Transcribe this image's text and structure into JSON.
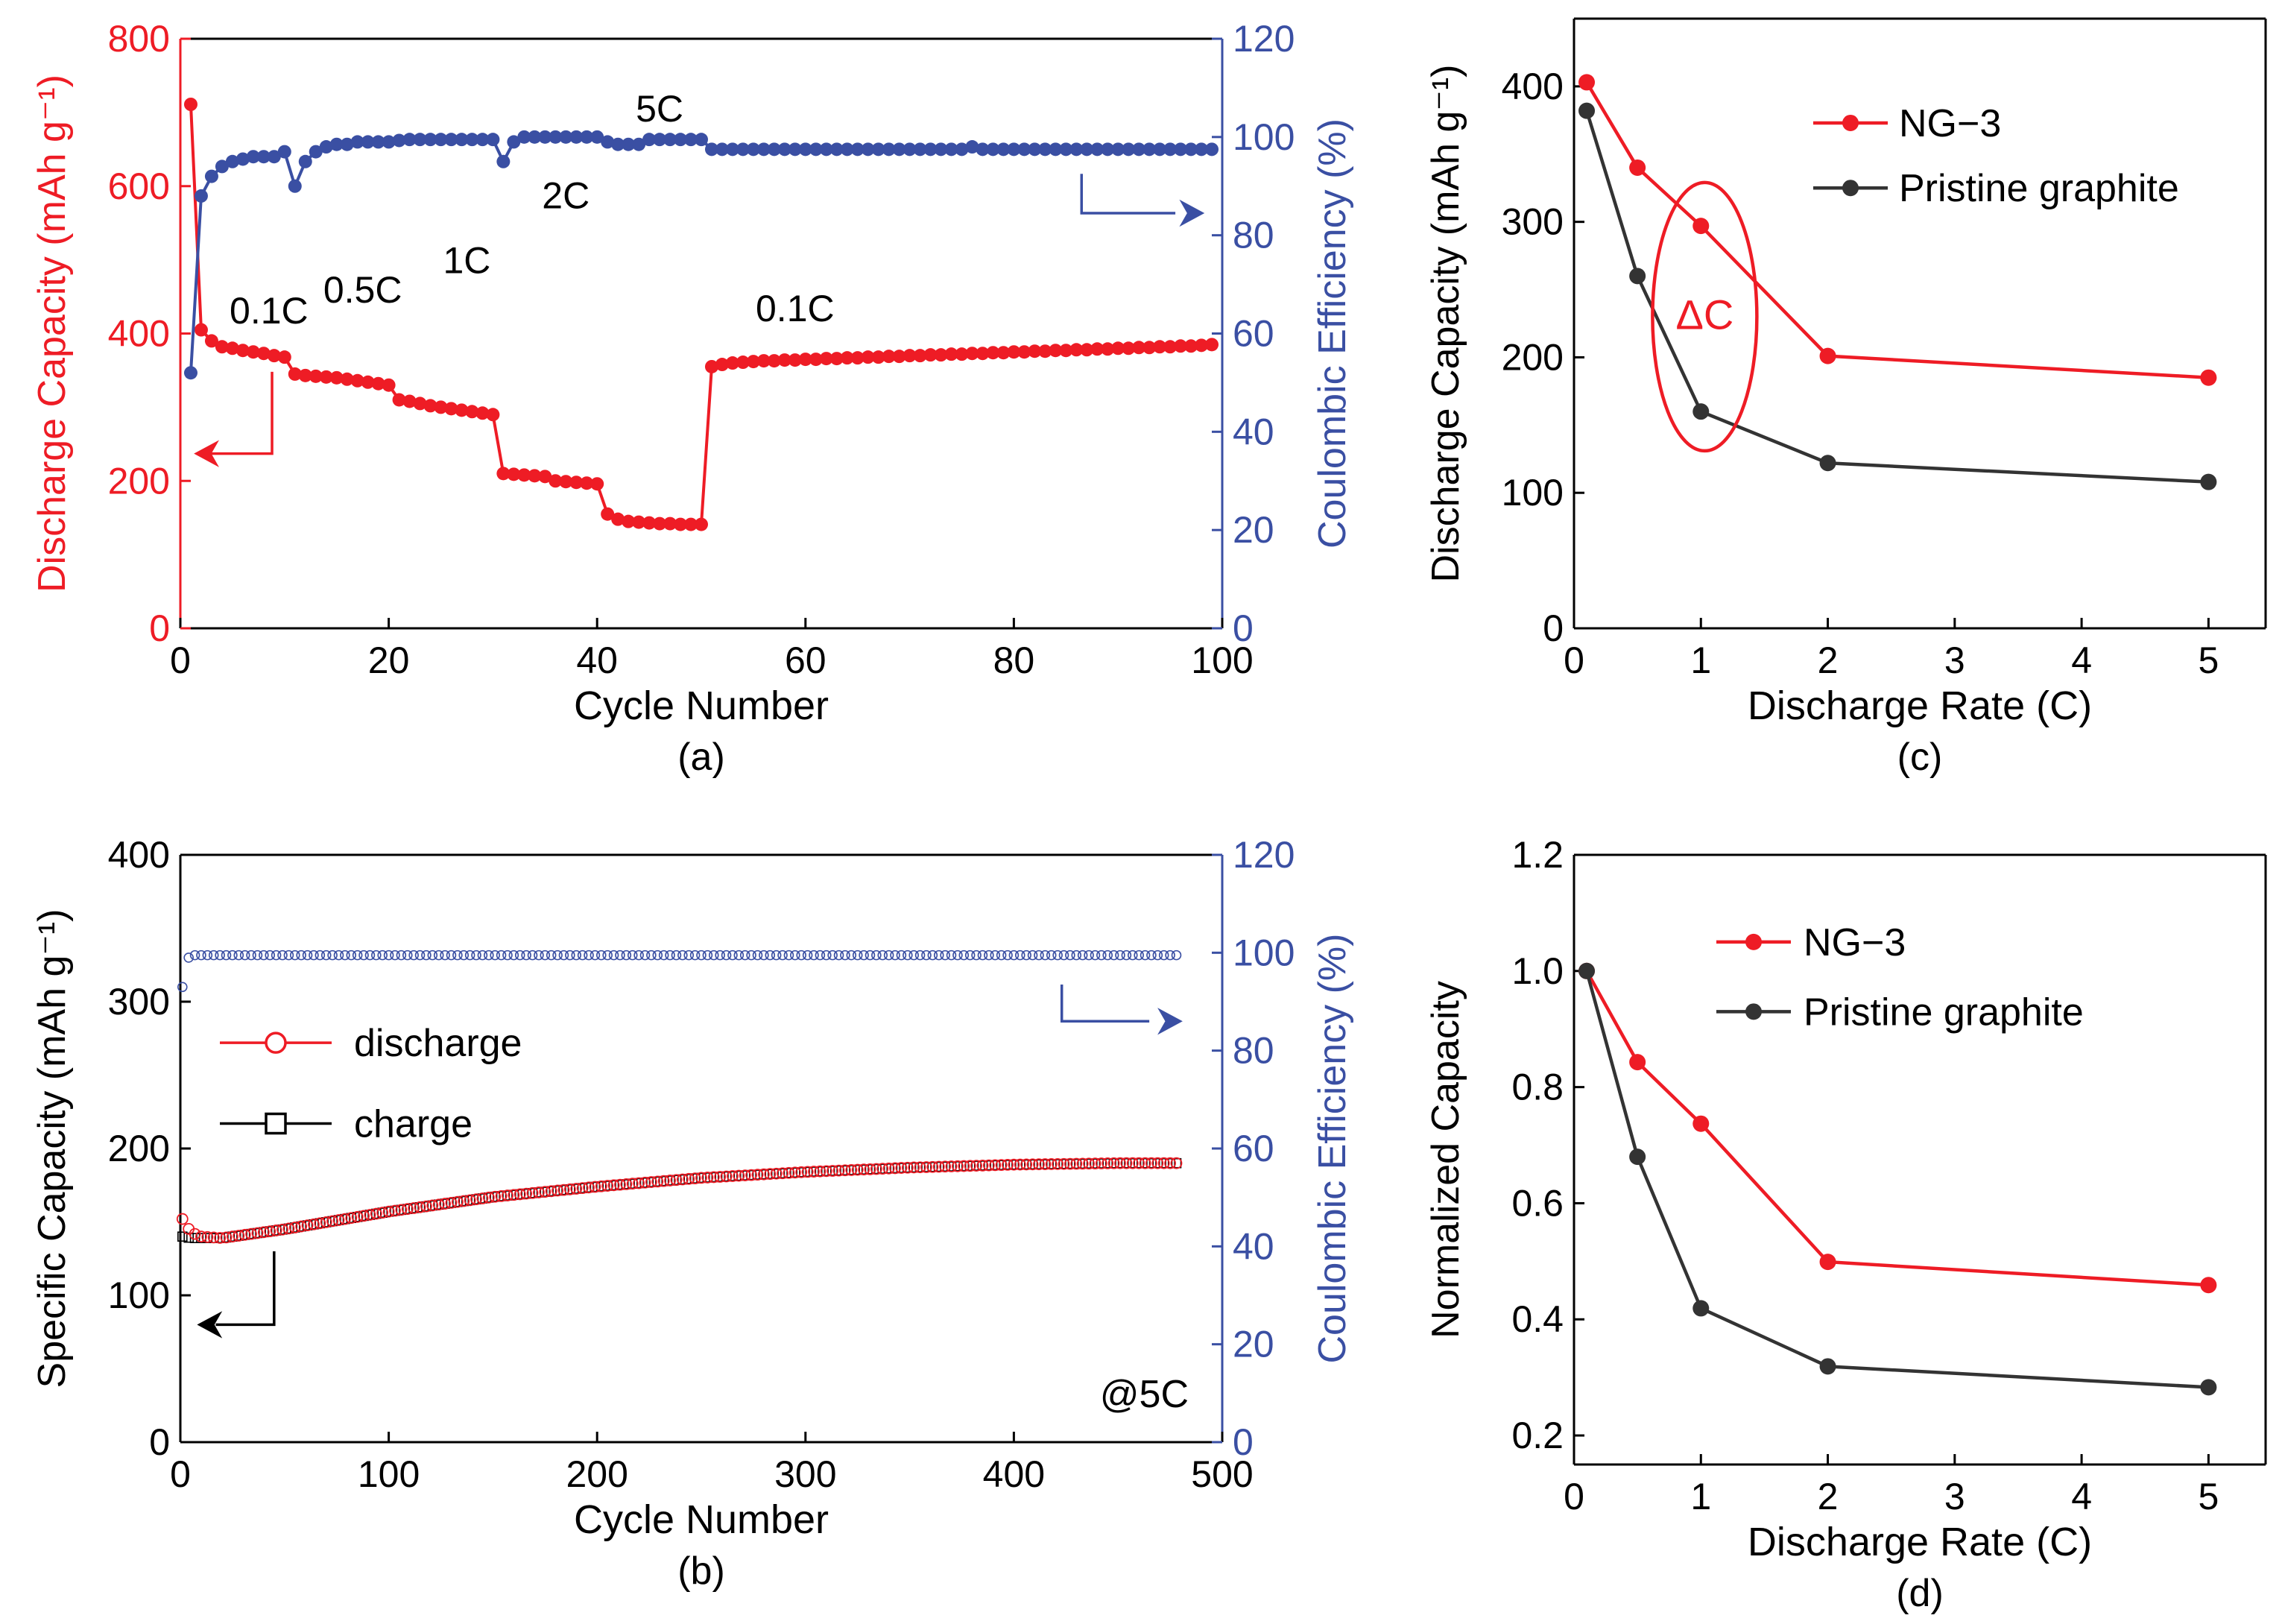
{
  "colors": {
    "red": "#ee1c25",
    "blue": "#3a4fa3",
    "black": "#000000",
    "dark": "#333333"
  },
  "chart_data": [
    {
      "id": "a",
      "type": "scatter-line",
      "caption": "(a)",
      "xlabel": "Cycle Number",
      "xlim": [
        0,
        100
      ],
      "xticks": [
        0,
        20,
        40,
        60,
        80,
        100
      ],
      "ylabel": "Discharge Capacity (mAh g⁻¹)",
      "ylim": [
        0,
        800
      ],
      "yticks": [
        0,
        200,
        400,
        600,
        800
      ],
      "y2label": "Coulombic Efficiency (%)",
      "y2lim": [
        0,
        120
      ],
      "y2ticks": [
        0,
        20,
        40,
        60,
        80,
        100,
        120
      ],
      "series": [
        {
          "name": "Discharge Capacity",
          "axis": "left",
          "color": "red",
          "x": [
            1,
            2,
            3,
            4,
            5,
            6,
            7,
            8,
            9,
            10,
            11,
            12,
            13,
            14,
            15,
            16,
            17,
            18,
            19,
            20,
            21,
            22,
            23,
            24,
            25,
            26,
            27,
            28,
            29,
            30,
            31,
            32,
            33,
            34,
            35,
            36,
            37,
            38,
            39,
            40,
            41,
            42,
            43,
            44,
            45,
            46,
            47,
            48,
            49,
            50,
            51,
            52,
            53,
            54,
            55,
            56,
            57,
            58,
            59,
            60,
            61,
            62,
            63,
            64,
            65,
            66,
            67,
            68,
            69,
            70,
            71,
            72,
            73,
            74,
            75,
            76,
            77,
            78,
            79,
            80,
            81,
            82,
            83,
            84,
            85,
            86,
            87,
            88,
            89,
            90,
            91,
            92,
            93,
            94,
            95,
            96,
            97,
            98,
            99
          ],
          "values": [
            711,
            405,
            390,
            382,
            380,
            377,
            375,
            373,
            370,
            368,
            345,
            343,
            342,
            341,
            340,
            338,
            336,
            334,
            332,
            330,
            310,
            308,
            305,
            302,
            300,
            298,
            296,
            294,
            292,
            290,
            210,
            209,
            208,
            207,
            206,
            200,
            199,
            198,
            197,
            196,
            155,
            148,
            145,
            144,
            143,
            142,
            142,
            141,
            141,
            141,
            355,
            358,
            360,
            361,
            362,
            363,
            363,
            364,
            364,
            365,
            365,
            366,
            366,
            367,
            367,
            368,
            368,
            369,
            369,
            370,
            370,
            371,
            371,
            372,
            372,
            373,
            373,
            374,
            374,
            375,
            375,
            376,
            376,
            377,
            377,
            378,
            378,
            379,
            379,
            380,
            380,
            381,
            381,
            382,
            382,
            383,
            383,
            384,
            385
          ]
        },
        {
          "name": "Coulombic Efficiency",
          "axis": "right",
          "color": "blue",
          "x": [
            1,
            2,
            3,
            4,
            5,
            6,
            7,
            8,
            9,
            10,
            11,
            12,
            13,
            14,
            15,
            16,
            17,
            18,
            19,
            20,
            21,
            22,
            23,
            24,
            25,
            26,
            27,
            28,
            29,
            30,
            31,
            32,
            33,
            34,
            35,
            36,
            37,
            38,
            39,
            40,
            41,
            42,
            43,
            44,
            45,
            46,
            47,
            48,
            49,
            50,
            51,
            52,
            53,
            54,
            55,
            56,
            57,
            58,
            59,
            60,
            61,
            62,
            63,
            64,
            65,
            66,
            67,
            68,
            69,
            70,
            71,
            72,
            73,
            74,
            75,
            76,
            77,
            78,
            79,
            80,
            81,
            82,
            83,
            84,
            85,
            86,
            87,
            88,
            89,
            90,
            91,
            92,
            93,
            94,
            95,
            96,
            97,
            98,
            99
          ],
          "values": [
            52,
            88,
            92,
            94,
            95,
            95.5,
            96,
            96,
            96,
            97,
            90,
            95,
            97,
            98,
            98.5,
            98.5,
            99,
            99,
            99,
            99,
            99.3,
            99.5,
            99.5,
            99.5,
            99.5,
            99.5,
            99.5,
            99.5,
            99.5,
            99.5,
            95,
            99,
            100,
            100,
            100,
            100,
            100,
            100,
            100,
            100,
            99,
            98.5,
            98.5,
            98.5,
            99.5,
            99.5,
            99.5,
            99.5,
            99.5,
            99.5,
            97.5,
            97.5,
            97.5,
            97.5,
            97.5,
            97.5,
            97.5,
            97.5,
            97.5,
            97.5,
            97.5,
            97.5,
            97.5,
            97.5,
            97.5,
            97.5,
            97.5,
            97.5,
            97.5,
            97.5,
            97.5,
            97.5,
            97.5,
            97.5,
            97.5,
            98,
            97.5,
            97.5,
            97.5,
            97.5,
            97.5,
            97.5,
            97.5,
            97.5,
            97.5,
            97.5,
            97.5,
            97.5,
            97.5,
            97.5,
            97.5,
            97.5,
            97.5,
            97.5,
            97.5,
            97.5,
            97.5,
            97.5,
            97.5
          ]
        }
      ],
      "annotations": [
        "0.1C",
        "0.5C",
        "1C",
        "2C",
        "5C",
        "0.1C"
      ]
    },
    {
      "id": "b",
      "type": "scatter",
      "caption": "(b)",
      "xlabel": "Cycle Number",
      "xlim": [
        0,
        500
      ],
      "xticks": [
        0,
        100,
        200,
        300,
        400,
        500
      ],
      "ylabel": "Specific Capacity (mAh g⁻¹)",
      "ylim": [
        0,
        400
      ],
      "yticks": [
        0,
        100,
        200,
        300,
        400
      ],
      "y2label": "Coulombic Efficiency (%)",
      "y2lim": [
        0,
        120
      ],
      "y2ticks": [
        0,
        20,
        40,
        60,
        80,
        100,
        120
      ],
      "legend": [
        "discharge",
        "charge"
      ],
      "annotation": "@5C",
      "series": [
        {
          "name": "discharge",
          "axis": "left",
          "color": "red",
          "marker": "open-circle",
          "curve_x": [
            1,
            5,
            10,
            20,
            50,
            100,
            150,
            200,
            250,
            300,
            350,
            400,
            450,
            480
          ],
          "curve_values": [
            152,
            143,
            140,
            139,
            145,
            157,
            167,
            174,
            180,
            184,
            187,
            189,
            190,
            190
          ]
        },
        {
          "name": "charge",
          "axis": "left",
          "color": "black",
          "marker": "open-square",
          "curve_x": [
            1,
            5,
            10,
            20,
            50,
            100,
            150,
            200,
            250,
            300,
            350,
            400,
            450,
            480
          ],
          "curve_values": [
            140,
            139,
            139,
            139,
            145,
            157,
            167,
            174,
            180,
            184,
            187,
            189,
            190,
            190
          ]
        },
        {
          "name": "Coulombic Efficiency",
          "axis": "right",
          "color": "blue",
          "marker": "open-circle",
          "curve_x": [
            1,
            2,
            5,
            480
          ],
          "curve_values": [
            93,
            98,
            99.5,
            99.5
          ]
        }
      ]
    },
    {
      "id": "c",
      "type": "line",
      "caption": "(c)",
      "xlabel": "Discharge Rate (C)",
      "xlim": [
        0,
        5.45
      ],
      "xticks": [
        0,
        1,
        2,
        3,
        4,
        5
      ],
      "ylabel": "Discharge Capacity (mAh g⁻¹)",
      "ylim": [
        0,
        450
      ],
      "yticks": [
        0,
        100,
        200,
        300,
        400
      ],
      "x": [
        0.1,
        0.5,
        1,
        2,
        5
      ],
      "series": [
        {
          "name": "NG−3",
          "color": "red",
          "values": [
            403,
            340,
            297,
            201,
            185
          ]
        },
        {
          "name": "Pristine graphite",
          "color": "dark",
          "values": [
            382,
            260,
            160,
            122,
            108
          ]
        }
      ],
      "annotation": "ΔC"
    },
    {
      "id": "d",
      "type": "line",
      "caption": "(d)",
      "xlabel": "Discharge Rate (C)",
      "xlim": [
        0,
        5.45
      ],
      "xticks": [
        0,
        1,
        2,
        3,
        4,
        5
      ],
      "ylabel": "Normalized Capacity",
      "ylim": [
        0.15,
        1.2
      ],
      "yticks": [
        0.2,
        0.4,
        0.6,
        0.8,
        1.0,
        1.2
      ],
      "x": [
        0.1,
        0.5,
        1,
        2,
        5
      ],
      "series": [
        {
          "name": "NG−3",
          "color": "red",
          "values": [
            1.0,
            0.843,
            0.737,
            0.499,
            0.459
          ]
        },
        {
          "name": "Pristine graphite",
          "color": "dark",
          "values": [
            1.0,
            0.68,
            0.419,
            0.319,
            0.283
          ]
        }
      ]
    }
  ]
}
